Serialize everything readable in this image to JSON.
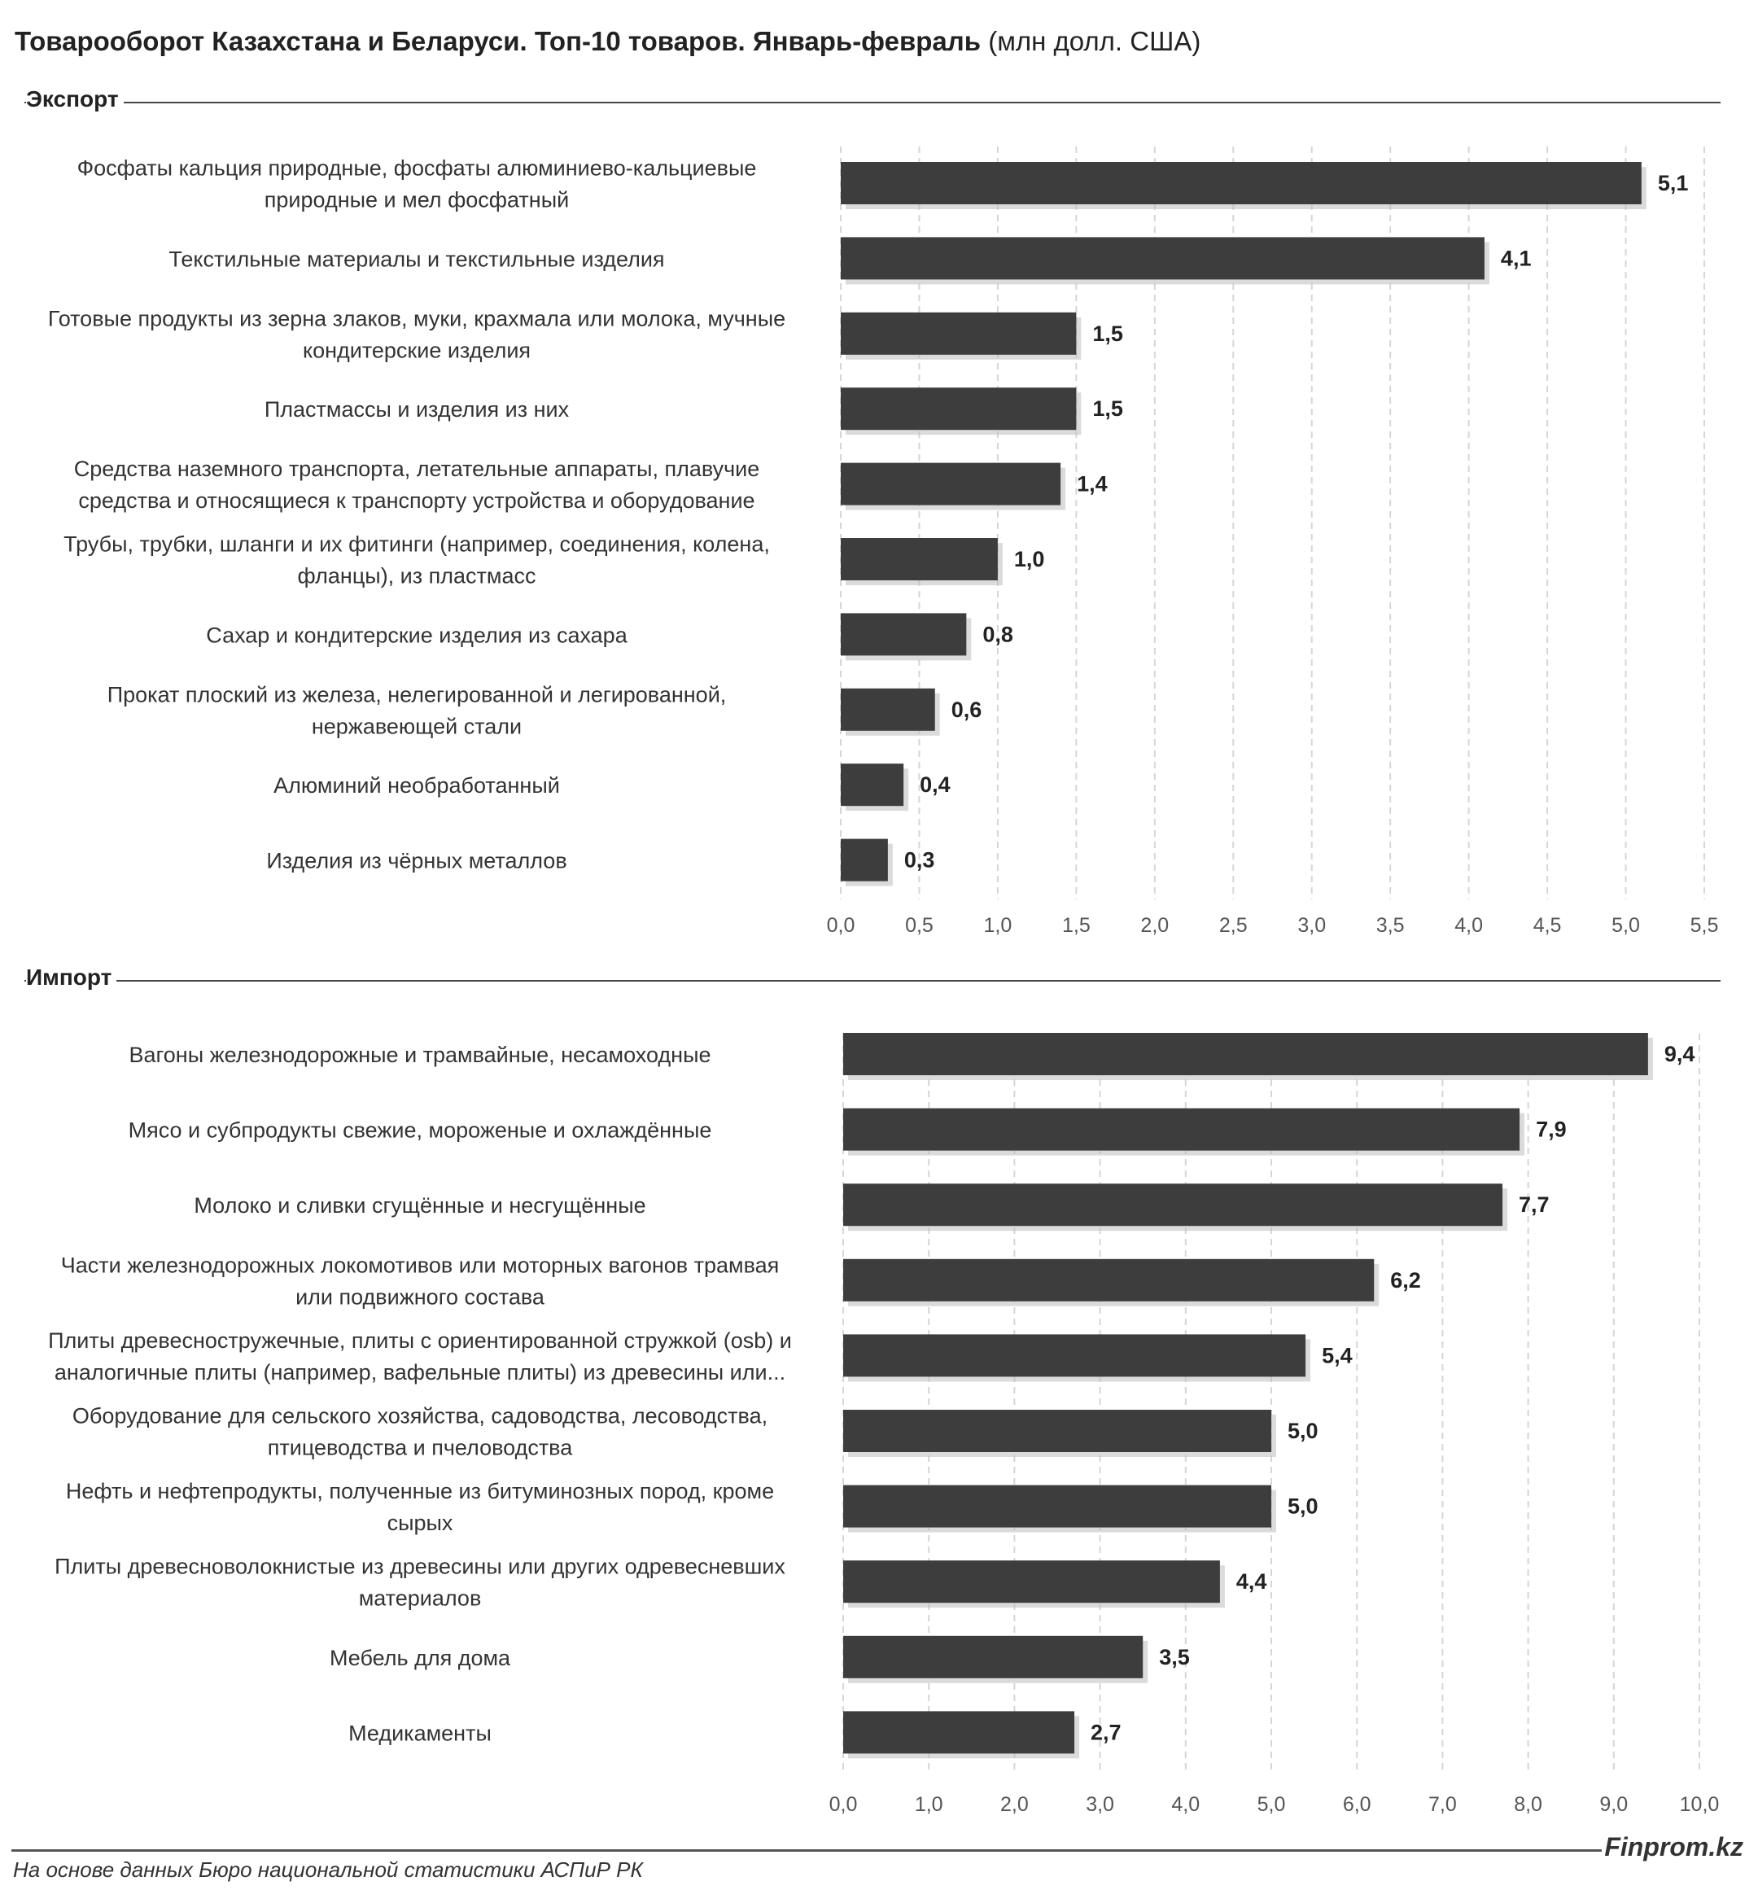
{
  "title_bold": "Товарооборот Казахстана и Беларуси. Топ-10 товаров. Январь-февраль",
  "title_unit": "(млн долл. США)",
  "source": "На основе данных Бюро национальной статистики АСПиР РК",
  "brand": "Finprom.kz",
  "colors": {
    "bar": "#3d3d3d",
    "grid": "#d6d6d6",
    "text": "#333333"
  },
  "chart_data": [
    {
      "type": "bar",
      "orientation": "horizontal",
      "section_label": "Экспорт",
      "categories": [
        "Фосфаты кальция природные, фосфаты алюминиево-кальциевые природные и мел фосфатный",
        "Текстильные материалы и текстильные изделия",
        "Готовые продукты из зерна злаков, муки, крахмала или молока, мучные кондитерские изделия",
        "Пластмассы и изделия из них",
        "Средства наземного транспорта, летательные аппараты, плавучие средства и относящиеся к транспорту устройства и оборудование",
        "Трубы, трубки, шланги и их фитинги (например, соединения, колена, фланцы), из пластмасс",
        "Сахар и кондитерские изделия из сахара",
        "Прокат плоский из железа, нелегированной  и легированной, нержавеющей стали",
        "Алюминий необработанный",
        "Изделия из чёрных металлов"
      ],
      "label_lines": [
        [
          "Фосфаты кальция природные, фосфаты алюминиево-кальциевые",
          "природные и мел фосфатный"
        ],
        [
          "Текстильные материалы и текстильные изделия"
        ],
        [
          "Готовые продукты из зерна злаков, муки, крахмала или молока, мучные",
          "кондитерские изделия"
        ],
        [
          "Пластмассы и изделия из них"
        ],
        [
          "Средства наземного транспорта, летательные аппараты, плавучие",
          "средства и относящиеся к транспорту устройства и оборудование"
        ],
        [
          "Трубы, трубки, шланги и их фитинги (например, соединения, колена,",
          "фланцы), из пластмасс"
        ],
        [
          "Сахар и кондитерские изделия из сахара"
        ],
        [
          "Прокат плоский из железа, нелегированной  и легированной,",
          "нержавеющей стали"
        ],
        [
          "Алюминий необработанный"
        ],
        [
          "Изделия из чёрных металлов"
        ]
      ],
      "values": [
        5.1,
        4.1,
        1.5,
        1.5,
        1.4,
        1.0,
        0.8,
        0.6,
        0.4,
        0.3
      ],
      "value_labels": [
        "5,1",
        "4,1",
        "1,5",
        "1,5",
        "1,4",
        "1,0",
        "0,8",
        "0,6",
        "0,4",
        "0,3"
      ],
      "xlim": [
        0,
        5.5
      ],
      "ticks": [
        0,
        0.5,
        1,
        1.5,
        2,
        2.5,
        3,
        3.5,
        4,
        4.5,
        5,
        5.5
      ],
      "tick_labels": [
        "0,0",
        "0,5",
        "1,0",
        "1,5",
        "2,0",
        "2,5",
        "3,0",
        "3,5",
        "4,0",
        "4,5",
        "5,0",
        "5,5"
      ],
      "grid": true
    },
    {
      "type": "bar",
      "orientation": "horizontal",
      "section_label": "Импорт",
      "categories": [
        "Вагоны железнодорожные и трамвайные, несамоходные",
        "Мясо и субпродукты свежие, мороженые и охлаждённые",
        "Молоко и сливки сгущённые и несгущённые",
        "Части железнодорожных локомотивов или моторных вагонов трамвая или подвижного состава",
        "Плиты древесностружечные, плиты с ориентированной стружкой (osb) и аналогичные плиты (например, вафельные плиты) из древесины или...",
        "Оборудование для сельского хозяйства, садоводства, лесоводства, птицеводства и пчеловодства",
        "Нефть и нефтепродукты, полученные из битуминозных пород, кроме сырых",
        "Плиты древесноволокнистые из древесины или других одревесневших материалов",
        "Мебель для дома",
        "Медикаменты"
      ],
      "label_lines": [
        [
          "Вагоны железнодорожные и трамвайные, несамоходные"
        ],
        [
          "Мясо и субпродукты свежие, мороженые и охлаждённые"
        ],
        [
          "Молоко и сливки сгущённые и несгущённые"
        ],
        [
          "Части железнодорожных локомотивов или моторных вагонов трамвая",
          "или подвижного состава"
        ],
        [
          "Плиты древесностружечные, плиты с ориентированной стружкой (osb) и",
          "аналогичные плиты (например, вафельные плиты) из древесины или..."
        ],
        [
          "Оборудование для сельского хозяйства, садоводства, лесоводства,",
          "птицеводства и пчеловодства"
        ],
        [
          "Нефть и нефтепродукты, полученные из битуминозных пород, кроме",
          "сырых"
        ],
        [
          "Плиты древесноволокнистые из древесины или других одревесневших",
          "материалов"
        ],
        [
          "Мебель для дома"
        ],
        [
          "Медикаменты"
        ]
      ],
      "values": [
        9.4,
        7.9,
        7.7,
        6.2,
        5.4,
        5.0,
        5.0,
        4.4,
        3.5,
        2.7
      ],
      "value_labels": [
        "9,4",
        "7,9",
        "7,7",
        "6,2",
        "5,4",
        "5,0",
        "5,0",
        "4,4",
        "3,5",
        "2,7"
      ],
      "xlim": [
        0,
        10
      ],
      "ticks": [
        0,
        1,
        2,
        3,
        4,
        5,
        6,
        7,
        8,
        9,
        10
      ],
      "tick_labels": [
        "0,0",
        "1,0",
        "2,0",
        "3,0",
        "4,0",
        "5,0",
        "6,0",
        "7,0",
        "8,0",
        "9,0",
        "10,0"
      ],
      "grid": true
    }
  ]
}
